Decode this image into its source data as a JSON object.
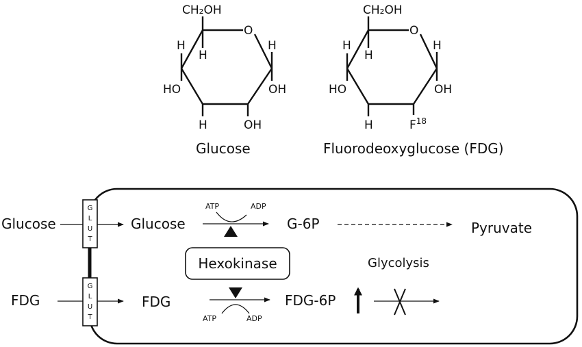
{
  "glucose": {
    "caption": "Glucose",
    "top": "CH₂OH",
    "ring_o": "O",
    "left_h_upper": "H",
    "left_h_inner": "H",
    "right_h": "H",
    "left_ho": "HO",
    "right_oh": "OH",
    "bottom_h": "H",
    "bottom_oh": "OH"
  },
  "fdg": {
    "caption": "Fluorodeoxyglucose (FDG)",
    "top": "CH₂OH",
    "ring_o": "O",
    "left_h_upper": "H",
    "left_h_inner": "H",
    "right_h": "H",
    "left_ho": "HO",
    "right_oh": "OH",
    "bottom_h": "H",
    "bottom_f": "F",
    "bottom_f_sup": "18"
  },
  "cell": {
    "outside_glucose": "Glucose",
    "outside_fdg": "FDG",
    "glut_letters": [
      "G",
      "L",
      "U",
      "T"
    ],
    "inside_glucose": "Glucose",
    "inside_fdg": "FDG",
    "atp_top": "ATP",
    "adp_top": "ADP",
    "atp_bottom": "ATP",
    "adp_bottom": "ADP",
    "g6p": "G-6P",
    "fdg6p": "FDG-6P",
    "pyruvate": "Pyruvate",
    "enzyme": "Hexokinase",
    "glycolysis": "Glycolysis"
  }
}
